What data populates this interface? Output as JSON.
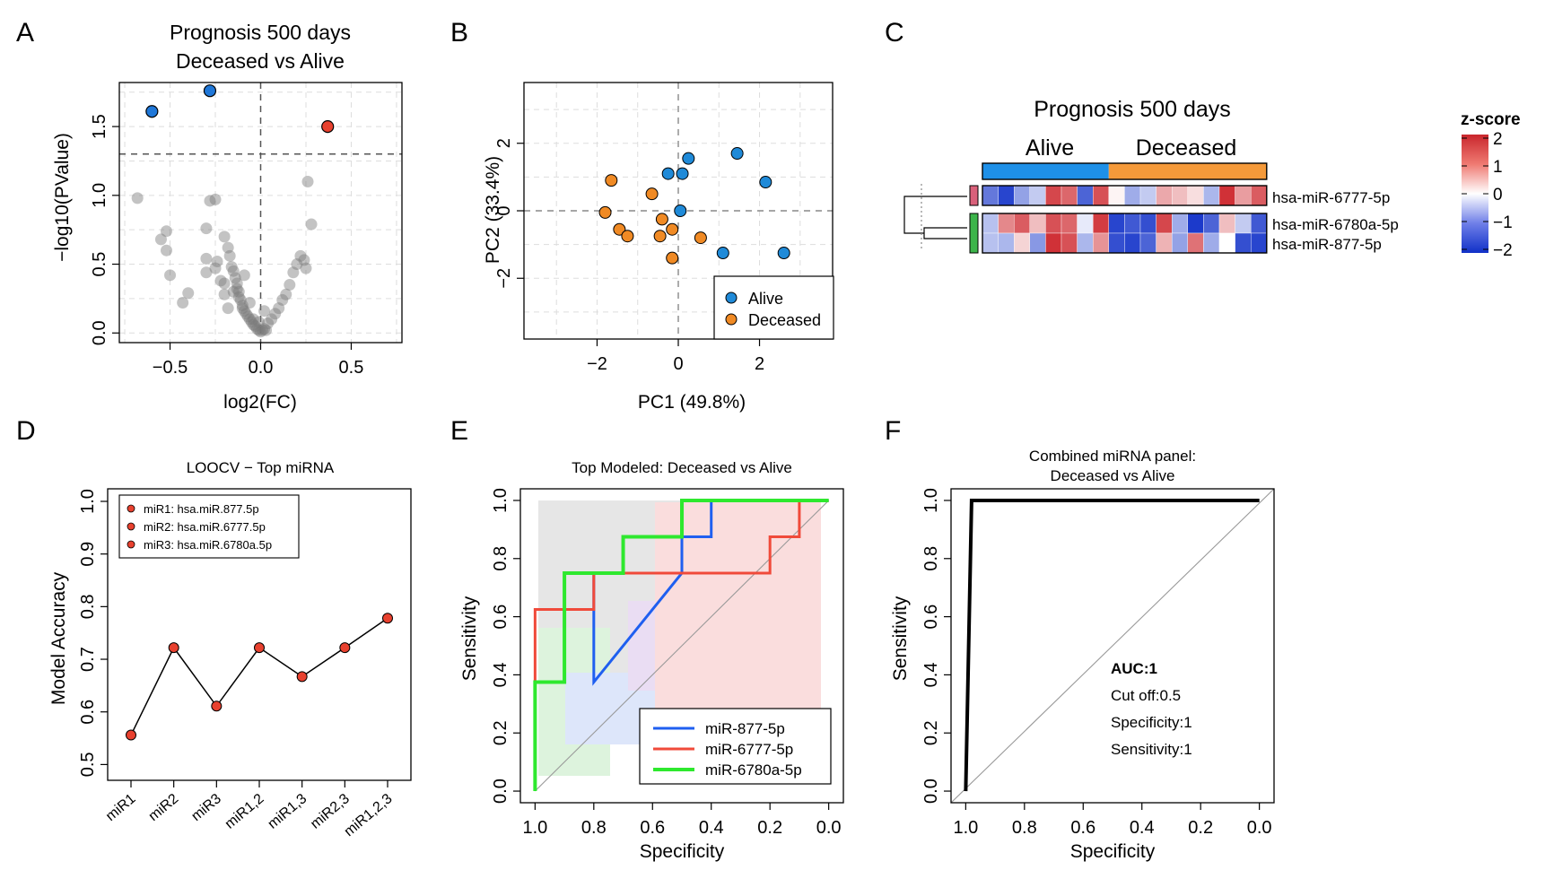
{
  "panel_letters": [
    "A",
    "B",
    "C",
    "D",
    "E",
    "F"
  ],
  "chart_data": [
    {
      "panel": "A",
      "type": "scatter",
      "title": [
        "Prognosis 500 days",
        "Deceased vs Alive"
      ],
      "xlabel": "log2(FC)",
      "ylabel": "−log10(PValue)",
      "xlim": [
        -0.78,
        0.78
      ],
      "ylim": [
        -0.07,
        1.82
      ],
      "xticks": [
        -0.5,
        0.0,
        0.5
      ],
      "xtick_labels": [
        "−0.5",
        "0.0",
        "0.5"
      ],
      "yticks": [
        0.0,
        0.5,
        1.0,
        1.5
      ],
      "ytick_labels": [
        "0.0",
        "0.5",
        "1.0",
        "1.5"
      ],
      "threshold_y": 1.3,
      "colors": {
        "up": "#e8412f",
        "down": "#1f77d8",
        "ns": "#7a7a7a"
      },
      "highlight_points": [
        {
          "x": -0.6,
          "y": 1.61,
          "group": "down"
        },
        {
          "x": -0.28,
          "y": 1.76,
          "group": "down"
        },
        {
          "x": 0.37,
          "y": 1.5,
          "group": "up"
        }
      ],
      "points": [
        [
          -0.68,
          0.98
        ],
        [
          -0.55,
          0.68
        ],
        [
          -0.52,
          0.74
        ],
        [
          -0.52,
          0.6
        ],
        [
          -0.5,
          0.42
        ],
        [
          -0.43,
          0.22
        ],
        [
          -0.4,
          0.29
        ],
        [
          -0.3,
          0.76
        ],
        [
          -0.3,
          0.54
        ],
        [
          -0.3,
          0.44
        ],
        [
          -0.28,
          0.96
        ],
        [
          -0.25,
          0.97
        ],
        [
          -0.24,
          0.52
        ],
        [
          -0.22,
          0.38
        ],
        [
          -0.2,
          0.28
        ],
        [
          -0.2,
          0.7
        ],
        [
          -0.18,
          0.62
        ],
        [
          -0.17,
          0.56
        ],
        [
          -0.16,
          0.48
        ],
        [
          -0.15,
          0.45
        ],
        [
          -0.14,
          0.4
        ],
        [
          -0.13,
          0.36
        ],
        [
          -0.13,
          0.32
        ],
        [
          -0.12,
          0.3
        ],
        [
          -0.12,
          0.26
        ],
        [
          -0.11,
          0.24
        ],
        [
          -0.1,
          0.2
        ],
        [
          -0.1,
          0.18
        ],
        [
          -0.09,
          0.16
        ],
        [
          -0.08,
          0.14
        ],
        [
          -0.07,
          0.12
        ],
        [
          -0.06,
          0.1
        ],
        [
          -0.05,
          0.08
        ],
        [
          -0.04,
          0.06
        ],
        [
          -0.03,
          0.05
        ],
        [
          -0.02,
          0.03
        ],
        [
          -0.01,
          0.02
        ],
        [
          0.0,
          0.01
        ],
        [
          0.01,
          0.02
        ],
        [
          0.02,
          0.03
        ],
        [
          -0.15,
          0.3
        ],
        [
          -0.09,
          0.42
        ],
        [
          -0.06,
          0.22
        ],
        [
          -0.18,
          0.18
        ],
        [
          -0.2,
          0.36
        ],
        [
          -0.25,
          0.47
        ],
        [
          0.04,
          0.07
        ],
        [
          0.06,
          0.1
        ],
        [
          0.08,
          0.14
        ],
        [
          0.1,
          0.18
        ],
        [
          0.12,
          0.24
        ],
        [
          0.14,
          0.28
        ],
        [
          0.16,
          0.35
        ],
        [
          0.18,
          0.44
        ],
        [
          0.2,
          0.5
        ],
        [
          0.22,
          0.56
        ],
        [
          0.24,
          0.53
        ],
        [
          0.26,
          1.1
        ],
        [
          0.28,
          0.79
        ],
        [
          0.25,
          0.47
        ],
        [
          0.02,
          0.16
        ],
        [
          -0.01,
          0.08
        ],
        [
          0.03,
          0.02
        ],
        [
          -0.04,
          0.1
        ]
      ]
    },
    {
      "panel": "B",
      "type": "scatter",
      "xlabel": "PC1 (49.8%)",
      "ylabel": "PC2 (33.4%)",
      "xlim": [
        -3.8,
        3.8
      ],
      "ylim": [
        -3.8,
        3.8
      ],
      "xticks": [
        -2,
        0,
        2
      ],
      "xtick_labels": [
        "−2",
        "0",
        "2"
      ],
      "yticks": [
        -2,
        0,
        2
      ],
      "ytick_labels": [
        "−2",
        "0",
        "2"
      ],
      "legend": "bottom-right",
      "series": [
        {
          "name": "Alive",
          "color": "#1f8ad8",
          "x": [
            0.25,
            1.45,
            2.15,
            -0.25,
            0.1,
            0.05,
            1.1,
            2.6
          ],
          "y": [
            1.55,
            1.7,
            0.85,
            1.1,
            1.1,
            0.0,
            -1.25,
            -1.25
          ]
        },
        {
          "name": "Deceased",
          "color": "#f08a24",
          "x": [
            -1.65,
            -0.65,
            -1.8,
            -1.45,
            -1.25,
            -0.4,
            -0.15,
            -0.45,
            0.55,
            -0.15
          ],
          "y": [
            0.9,
            0.5,
            -0.05,
            -0.55,
            -0.75,
            -0.25,
            -0.55,
            -0.75,
            -0.8,
            -1.4
          ]
        }
      ]
    },
    {
      "panel": "C",
      "type": "heatmap",
      "title": "Prognosis 500 days",
      "groups": [
        {
          "name": "Alive",
          "color": "#1e90e8",
          "n": 8
        },
        {
          "name": "Deceased",
          "color": "#f59a3a",
          "n": 10
        }
      ],
      "rows": [
        "hsa-miR-6777-5p",
        "hsa-miR-6780a-5p",
        "hsa-miR-877-5p"
      ],
      "row_cluster_colors": [
        "#d9607a",
        "#3cb44a",
        "#3cb44a"
      ],
      "colorbar_title": "z-score",
      "colorbar_ticks": [
        2,
        1,
        0,
        -1,
        -2
      ],
      "colorbar_tick_labels": [
        "2",
        "1",
        "0",
        "−1",
        "−2"
      ],
      "matrix": [
        [
          -1.3,
          -1.8,
          -0.9,
          -0.5,
          1.7,
          1.4,
          -1.5,
          1.6,
          0.1,
          -0.8,
          -0.5,
          0.8,
          0.6,
          0.3,
          -0.7,
          1.9,
          0.9,
          1.5
        ],
        [
          -0.6,
          1.1,
          1.5,
          0.6,
          1.6,
          1.4,
          -0.2,
          1.8,
          -1.8,
          -1.6,
          -1.7,
          1.7,
          -0.8,
          -1.9,
          -1.5,
          0.6,
          -0.5,
          -1.6
        ],
        [
          -0.6,
          -0.7,
          0.4,
          -1.0,
          1.9,
          1.6,
          -0.7,
          1.0,
          -1.7,
          -1.8,
          -1.5,
          0.7,
          -0.9,
          1.3,
          -0.8,
          0.0,
          -1.7,
          -1.8
        ]
      ]
    },
    {
      "panel": "D",
      "type": "line",
      "title": "LOOCV − Top miRNA",
      "xlabel": "",
      "ylabel": "Model Accuracy",
      "categories": [
        "miR1",
        "miR2",
        "miR3",
        "miR1,2",
        "miR1,3",
        "miR2,3",
        "miR1,2,3"
      ],
      "values": [
        0.556,
        0.722,
        0.611,
        0.722,
        0.667,
        0.722,
        0.778
      ],
      "ylim": [
        0.47,
        1.0
      ],
      "yticks": [
        0.5,
        0.6,
        0.7,
        0.8,
        0.9,
        1.0
      ],
      "ytick_labels": [
        "0.5",
        "0.6",
        "0.7",
        "0.8",
        "0.9",
        "1.0"
      ],
      "legend_entries": [
        "miR1: hsa.miR.877.5p",
        "miR2: hsa.miR.6777.5p",
        "miR3: hsa.miR.6780a.5p"
      ],
      "legend": "top-left",
      "point_color": "#e8412f"
    },
    {
      "panel": "E",
      "type": "line",
      "title": "Top Modeled: Deceased vs Alive",
      "xlabel": "Specificity",
      "ylabel": "Sensitivity",
      "xlim_reversed": [
        1.0,
        0.0
      ],
      "ticks": [
        1.0,
        0.8,
        0.6,
        0.4,
        0.2,
        0.0
      ],
      "tick_labels": [
        "1.0",
        "0.8",
        "0.6",
        "0.4",
        "0.2",
        "0.0"
      ],
      "yticks": [
        0.0,
        0.2,
        0.4,
        0.6,
        0.8,
        1.0
      ],
      "ytick_labels": [
        "0.0",
        "0.2",
        "0.4",
        "0.6",
        "0.8",
        "1.0"
      ],
      "legend": "bottom-right",
      "series": [
        {
          "name": "miR-877-5p",
          "color": "#1f5ff0",
          "spec": [
            1.0,
            1.0,
            0.9,
            0.9,
            0.8,
            0.8,
            0.5,
            0.5,
            0.4,
            0.4,
            0.0
          ],
          "sens": [
            0.0,
            0.375,
            0.375,
            0.75,
            0.75,
            0.375,
            0.75,
            0.875,
            0.875,
            1.0,
            1.0
          ]
        },
        {
          "name": "miR-6777-5p",
          "color": "#f04a3a",
          "spec": [
            1.0,
            1.0,
            0.8,
            0.8,
            0.7,
            0.7,
            0.2,
            0.2,
            0.1,
            0.1,
            0.0
          ],
          "sens": [
            0.0,
            0.625,
            0.625,
            0.75,
            0.75,
            0.75,
            0.75,
            0.875,
            0.875,
            1.0,
            1.0
          ]
        },
        {
          "name": "miR-6780a-5p",
          "color": "#2ee82e",
          "spec": [
            1.0,
            1.0,
            0.9,
            0.9,
            0.7,
            0.7,
            0.5,
            0.5,
            0.0
          ],
          "sens": [
            0.0,
            0.375,
            0.375,
            0.75,
            0.75,
            0.875,
            0.875,
            1.0,
            1.0
          ]
        }
      ],
      "ci_fill_colors": [
        "#b4e6b4",
        "#b4c8f5",
        "#f5b4b4",
        "#e6d2a0"
      ]
    },
    {
      "panel": "F",
      "type": "line",
      "title": [
        "Combined miRNA panel:",
        "Deceased vs Alive"
      ],
      "xlabel": "Specificity",
      "ylabel": "Sensitivity",
      "ticks": [
        1.0,
        0.8,
        0.6,
        0.4,
        0.2,
        0.0
      ],
      "tick_labels": [
        "1.0",
        "0.8",
        "0.6",
        "0.4",
        "0.2",
        "0.0"
      ],
      "yticks": [
        0.0,
        0.2,
        0.4,
        0.6,
        0.8,
        1.0
      ],
      "ytick_labels": [
        "0.0",
        "0.2",
        "0.4",
        "0.6",
        "0.8",
        "1.0"
      ],
      "spec": [
        1.0,
        0.98,
        0.0
      ],
      "sens": [
        0.0,
        1.0,
        1.0
      ],
      "annotations": [
        "AUC:1",
        "Cut off:0.5",
        "Specificity:1",
        "Sensitivity:1"
      ]
    }
  ]
}
